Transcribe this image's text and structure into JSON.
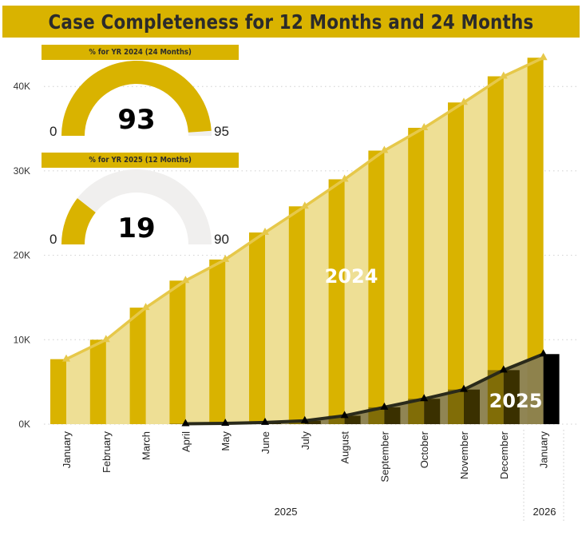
{
  "title": "Case Completeness for 12 Months and 24 Months",
  "colors": {
    "gold": "#d9b300",
    "gold_light": "#eedf95",
    "gold_line": "#e6c84a",
    "dark_bar": "#3a3000",
    "olive_area": "#8a7f50",
    "olive_bar": "#7f6a00",
    "black": "#000000",
    "gauge_track": "#f0efee",
    "header_text": "#2b2b2b"
  },
  "gauges": [
    {
      "header": "% for YR 2024 (24 Months)",
      "value": 93,
      "value_label": "93",
      "min_label": "0",
      "max_label": "95",
      "fraction": 0.979
    },
    {
      "header": "% for YR 2025 (12 Months)",
      "value": 19,
      "value_label": "19",
      "min_label": "0",
      "max_label": "90",
      "fraction": 0.211
    }
  ],
  "chart_data": {
    "type": "bar",
    "title": "Case Completeness for 12 Months and 24 Months",
    "xlabel": "",
    "ylabel": "",
    "ylim": [
      0,
      45000
    ],
    "yticks": [
      0,
      10000,
      20000,
      30000,
      40000
    ],
    "ytick_labels": [
      "0K",
      "10K",
      "20K",
      "30K",
      "40K"
    ],
    "grid": true,
    "categories": [
      "January",
      "February",
      "March",
      "April",
      "May",
      "June",
      "July",
      "August",
      "September",
      "October",
      "November",
      "December",
      "January"
    ],
    "year_groups": [
      {
        "label": "2025",
        "count": 12
      },
      {
        "label": "2026",
        "count": 1
      }
    ],
    "series": [
      {
        "name": "2024",
        "label": "2024",
        "style": "bar+area+line",
        "values": [
          7700,
          10000,
          13800,
          17000,
          19500,
          22700,
          25800,
          29000,
          32400,
          35100,
          38100,
          41200,
          43400
        ]
      },
      {
        "name": "2025",
        "label": "2025",
        "style": "bar+area+line",
        "values": [
          null,
          null,
          null,
          50,
          100,
          200,
          400,
          1000,
          2000,
          3000,
          4100,
          6400,
          8300
        ]
      }
    ]
  }
}
